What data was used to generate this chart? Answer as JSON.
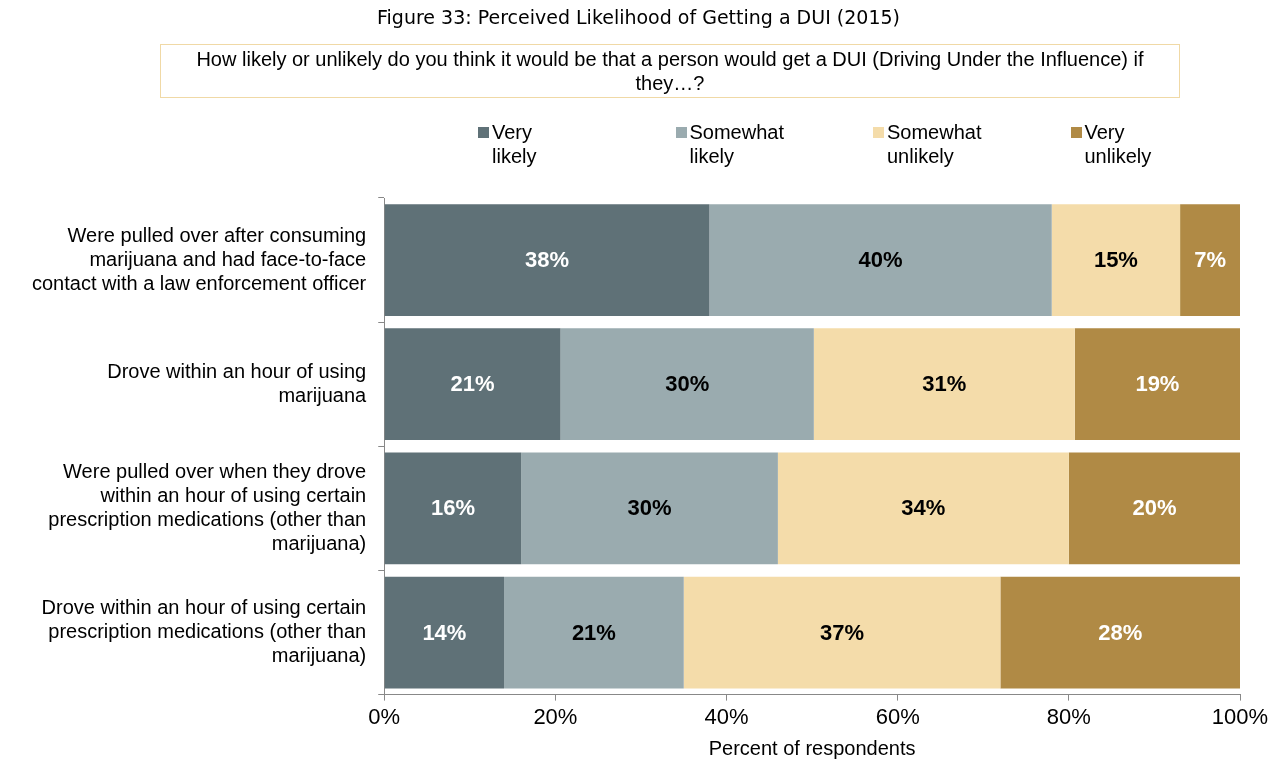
{
  "chart_data": {
    "type": "bar",
    "orientation": "horizontal",
    "stacked": true,
    "title": "Figure 33: Perceived Likelihood of Getting a DUI (2015)",
    "subtitle": "How likely or unlikely do you think it would be that a person would get a DUI (Driving Under the Influence) if they…?",
    "xlabel": "Percent of respondents",
    "categories": [
      "Were pulled over after consuming marijuana and had face-to-face contact with a law enforcement officer",
      "Drove within an hour of using marijuana",
      "Were pulled over when they drove within an hour of using certain prescription medications (other than marijuana)",
      "Drove within an hour of using certain prescription medications (other than marijuana)"
    ],
    "series": [
      {
        "name": "Very likely",
        "color": "#5f7177",
        "values": [
          38,
          20.6,
          16,
          14
        ],
        "value_labels": [
          "38%",
          "21%",
          "16%",
          "14%"
        ]
      },
      {
        "name": "Somewhat likely",
        "color": "#9aabaf",
        "values": [
          40,
          29.6,
          30,
          21
        ],
        "value_labels": [
          "40%",
          "30%",
          "30%",
          "21%"
        ]
      },
      {
        "name": "Somewhat unlikely",
        "color": "#f4dcaa",
        "values": [
          15,
          30.5,
          34,
          37
        ],
        "value_labels": [
          "15%",
          "31%",
          "34%",
          "37%"
        ]
      },
      {
        "name": "Very unlikely",
        "color": "#b08a45",
        "values": [
          7,
          19.3,
          20,
          28
        ],
        "value_labels": [
          "7%",
          "19%",
          "20%",
          "28%"
        ]
      }
    ],
    "xlim": [
      0,
      100
    ],
    "xticks": [
      {
        "value": 0,
        "label": "0%"
      },
      {
        "value": 20,
        "label": "20%"
      },
      {
        "value": 40,
        "label": "40%"
      },
      {
        "value": 60,
        "label": "60%"
      },
      {
        "value": 80,
        "label": "80%"
      },
      {
        "value": 100,
        "label": "100%"
      }
    ],
    "grid": false,
    "legend": "top"
  }
}
